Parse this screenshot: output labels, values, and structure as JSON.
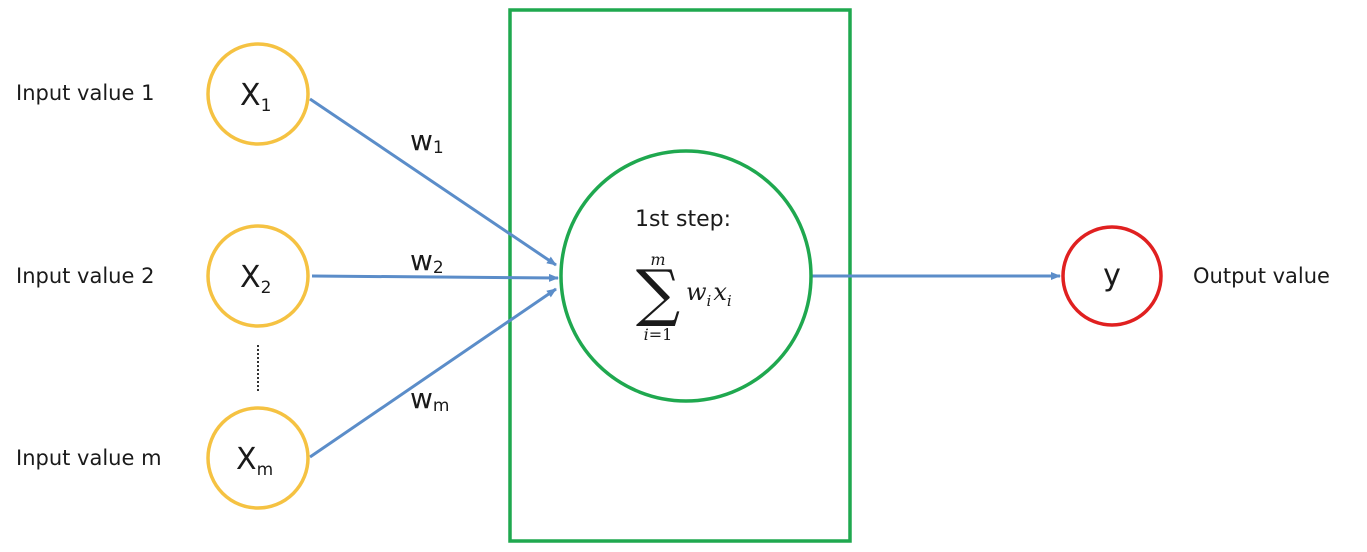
{
  "colors": {
    "input_node": "#F5C242",
    "neuron_box": "#1FA84F",
    "neuron_circle": "#1FA84F",
    "output_node": "#E02020",
    "edge": "#5B8DC9",
    "text": "#1a1a1a"
  },
  "inputs": [
    {
      "side_label": "Input value 1",
      "node_label": "X",
      "node_sub": "1",
      "weight_label": "w",
      "weight_sub": "1"
    },
    {
      "side_label": "Input value 2",
      "node_label": "X",
      "node_sub": "2",
      "weight_label": "w",
      "weight_sub": "2"
    },
    {
      "side_label": "Input value m",
      "node_label": "X",
      "node_sub": "m",
      "weight_label": "w",
      "weight_sub": "m"
    }
  ],
  "neuron": {
    "step_label": "1st step:",
    "sum_upper": "m",
    "sum_lower_var": "i",
    "sum_lower_rest": "=1",
    "term_w": "w",
    "term_w_sub": "i",
    "term_x": "x",
    "term_x_sub": "i",
    "sigma": "∑"
  },
  "output": {
    "node_label": "y",
    "side_label": "Output value"
  }
}
